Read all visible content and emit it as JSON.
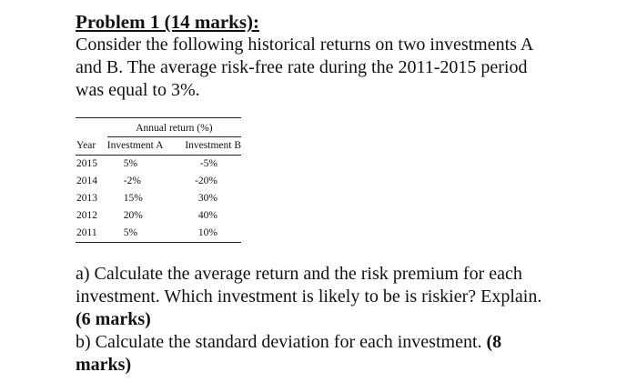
{
  "problem": {
    "title": "Problem 1 (14 marks):",
    "intro_lines": [
      "Consider the following historical returns on two investments A",
      "and B. The average risk-free rate during the 2011-2015 period",
      "was equal to 3%."
    ]
  },
  "table": {
    "group_header": "Annual return (%)",
    "columns": [
      "Year",
      "Investment A",
      "Investment B"
    ],
    "rows": [
      {
        "year": "2015",
        "a": "5%",
        "b": "-5%"
      },
      {
        "year": "2014",
        "a": "-2%",
        "b": "-20%"
      },
      {
        "year": "2013",
        "a": "15%",
        "b": "30%"
      },
      {
        "year": "2012",
        "a": "20%",
        "b": "40%"
      },
      {
        "year": "2011",
        "a": "5%",
        "b": "10%"
      }
    ]
  },
  "questions": {
    "a": {
      "lines": [
        "a) Calculate the average return and the risk premium for each",
        "investment. Which investment is likely to be is riskier? Explain."
      ],
      "marks": "(6 marks)"
    },
    "b": {
      "text": "b) Calculate the standard deviation for each investment.",
      "marks_part1": "(8",
      "marks_part2": "marks)"
    }
  }
}
